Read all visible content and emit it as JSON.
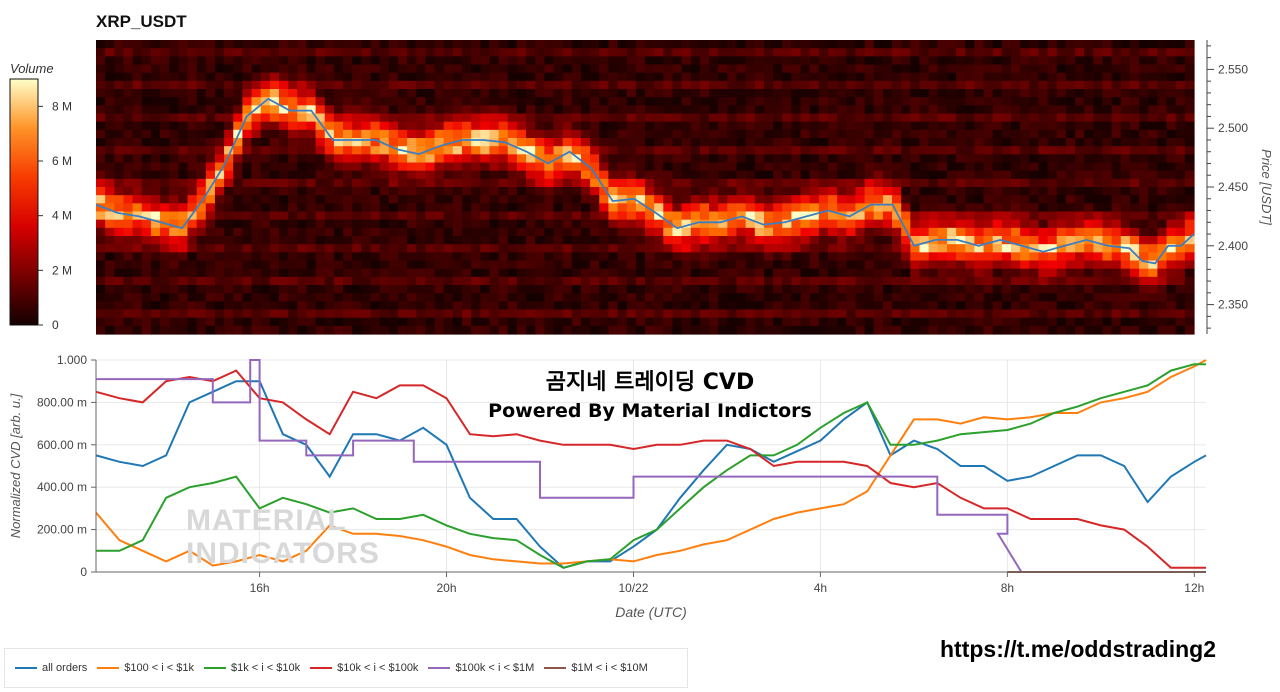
{
  "header": {
    "title": "XRP_USDT"
  },
  "overlay": {
    "line1": "곰지네 트레이딩 CVD",
    "line2": "Powered By Material Indictors",
    "watermark_line1": "MATERIAL",
    "watermark_line2": "INDICATORS",
    "link": "https://t.me/oddstrading2"
  },
  "colors": {
    "all_orders": "#1f77b4",
    "s100_1k": "#ff7f0e",
    "s1k_10k": "#2ca02c",
    "s10k_100k": "#d62728",
    "s100k_1m": "#9467bd",
    "s1m_10m": "#8c564b",
    "price_line": "#3b7fc0"
  },
  "chart_data": [
    {
      "type": "heatmap",
      "title": "XRP_USDT",
      "ylabel": "Price [USDT]",
      "yticks": [
        "2.350",
        "2.400",
        "2.450",
        "2.500",
        "2.550"
      ],
      "ylim": [
        2.325,
        2.575
      ],
      "colorbar": {
        "label": "Volume",
        "ticks": [
          "0",
          "2 M",
          "4 M",
          "6 M",
          "8 M"
        ],
        "max": 9
      },
      "price_series": {
        "x": [
          0,
          0.5,
          1,
          1.5,
          2,
          2.5,
          3,
          3.5,
          4,
          4.5,
          5,
          5.5,
          6,
          6.5,
          7,
          7.5,
          8,
          8.5,
          9,
          9.5,
          10,
          10.5,
          11,
          11.5,
          12,
          12.5,
          13,
          13.5,
          14,
          14.5,
          15,
          15.5,
          16,
          16.5,
          17,
          17.5,
          18,
          18.5,
          19,
          19.5,
          20,
          20.5,
          21,
          21.5,
          22,
          22.5,
          23,
          23.5,
          24,
          24.3,
          24.6,
          24.9,
          25.2,
          25.5
        ],
        "y": [
          2.435,
          2.428,
          2.425,
          2.42,
          2.415,
          2.44,
          2.47,
          2.51,
          2.525,
          2.515,
          2.515,
          2.49,
          2.49,
          2.49,
          2.482,
          2.478,
          2.485,
          2.49,
          2.49,
          2.488,
          2.48,
          2.47,
          2.48,
          2.466,
          2.438,
          2.44,
          2.428,
          2.415,
          2.42,
          2.42,
          2.425,
          2.418,
          2.42,
          2.425,
          2.43,
          2.425,
          2.435,
          2.435,
          2.4,
          2.405,
          2.405,
          2.4,
          2.405,
          2.4,
          2.395,
          2.4,
          2.405,
          2.4,
          2.398,
          2.387,
          2.385,
          2.4,
          2.4,
          2.41
        ],
        "color": "#3b7fc0"
      }
    },
    {
      "type": "line",
      "xlabel": "Date (UTC)",
      "ylabel": "Normalized CVD [arb. u.]",
      "xticks": [
        {
          "label": "16h",
          "value": 4
        },
        {
          "label": "20h",
          "value": 8
        },
        {
          "label": "10/22",
          "value": 12
        },
        {
          "label": "4h",
          "value": 16
        },
        {
          "label": "8h",
          "value": 20
        },
        {
          "label": "12h",
          "value": 24
        }
      ],
      "xlim": [
        0.5,
        24.25
      ],
      "yticks": [
        "0",
        "200.00 m",
        "400.00 m",
        "600.00 m",
        "800.00 m",
        "1.000"
      ],
      "ylim": [
        0,
        1
      ],
      "series": [
        {
          "name": "all orders",
          "color": "#1f77b4",
          "x": [
            0.5,
            1,
            1.5,
            2,
            2.5,
            3,
            3.5,
            4,
            4.5,
            5,
            5.5,
            6,
            6.5,
            7,
            7.5,
            8,
            8.5,
            9,
            9.5,
            10,
            10.5,
            11,
            11.5,
            12,
            12.5,
            13,
            13.5,
            14,
            14.5,
            15,
            15.5,
            16,
            16.5,
            17,
            17.5,
            18,
            18.5,
            19,
            19.5,
            20,
            20.5,
            21,
            21.5,
            22,
            22.5,
            23,
            23.5,
            24,
            24.25
          ],
          "y": [
            0.55,
            0.52,
            0.5,
            0.55,
            0.8,
            0.85,
            0.9,
            0.9,
            0.65,
            0.6,
            0.45,
            0.65,
            0.65,
            0.62,
            0.68,
            0.6,
            0.35,
            0.25,
            0.25,
            0.12,
            0.02,
            0.05,
            0.05,
            0.12,
            0.2,
            0.35,
            0.48,
            0.6,
            0.58,
            0.52,
            0.57,
            0.62,
            0.72,
            0.8,
            0.55,
            0.62,
            0.58,
            0.5,
            0.5,
            0.43,
            0.45,
            0.5,
            0.55,
            0.55,
            0.5,
            0.33,
            0.45,
            0.52,
            0.55
          ]
        },
        {
          "name": "$100 < i < $1k",
          "color": "#ff7f0e",
          "x": [
            0.5,
            1,
            1.5,
            2,
            2.5,
            3,
            3.5,
            4,
            4.5,
            5,
            5.5,
            6,
            6.5,
            7,
            7.5,
            8,
            8.5,
            9,
            9.5,
            10,
            10.5,
            11,
            11.5,
            12,
            12.5,
            13,
            13.5,
            14,
            14.5,
            15,
            15.5,
            16,
            16.5,
            17,
            17.5,
            18,
            18.5,
            19,
            19.5,
            20,
            20.5,
            21,
            21.5,
            22,
            22.5,
            23,
            23.5,
            24,
            24.25
          ],
          "y": [
            0.28,
            0.15,
            0.1,
            0.05,
            0.1,
            0.03,
            0.05,
            0.08,
            0.05,
            0.1,
            0.22,
            0.18,
            0.18,
            0.17,
            0.15,
            0.12,
            0.08,
            0.06,
            0.05,
            0.04,
            0.04,
            0.05,
            0.06,
            0.05,
            0.08,
            0.1,
            0.13,
            0.15,
            0.2,
            0.25,
            0.28,
            0.3,
            0.32,
            0.38,
            0.55,
            0.72,
            0.72,
            0.7,
            0.73,
            0.72,
            0.73,
            0.75,
            0.75,
            0.8,
            0.82,
            0.85,
            0.92,
            0.97,
            1.0
          ]
        },
        {
          "name": "$1k < i < $10k",
          "color": "#2ca02c",
          "x": [
            0.5,
            1,
            1.5,
            2,
            2.5,
            3,
            3.5,
            4,
            4.5,
            5,
            5.5,
            6,
            6.5,
            7,
            7.5,
            8,
            8.5,
            9,
            9.5,
            10,
            10.5,
            11,
            11.5,
            12,
            12.5,
            13,
            13.5,
            14,
            14.5,
            15,
            15.5,
            16,
            16.5,
            17,
            17.5,
            18,
            18.5,
            19,
            19.5,
            20,
            20.5,
            21,
            21.5,
            22,
            22.5,
            23,
            23.5,
            24,
            24.25
          ],
          "y": [
            0.1,
            0.1,
            0.15,
            0.35,
            0.4,
            0.42,
            0.45,
            0.3,
            0.35,
            0.32,
            0.28,
            0.3,
            0.25,
            0.25,
            0.27,
            0.22,
            0.18,
            0.16,
            0.15,
            0.08,
            0.02,
            0.05,
            0.06,
            0.15,
            0.2,
            0.3,
            0.4,
            0.48,
            0.55,
            0.55,
            0.6,
            0.68,
            0.75,
            0.8,
            0.6,
            0.6,
            0.62,
            0.65,
            0.66,
            0.67,
            0.7,
            0.75,
            0.78,
            0.82,
            0.85,
            0.88,
            0.95,
            0.98,
            0.98
          ]
        },
        {
          "name": "$10k < i < $100k",
          "color": "#d62728",
          "x": [
            0.5,
            1,
            1.5,
            2,
            2.5,
            3,
            3.5,
            4,
            4.5,
            5,
            5.5,
            6,
            6.5,
            7,
            7.5,
            8,
            8.5,
            9,
            9.5,
            10,
            10.5,
            11,
            11.5,
            12,
            12.5,
            13,
            13.5,
            14,
            14.5,
            15,
            15.5,
            16,
            16.5,
            17,
            17.5,
            18,
            18.5,
            19,
            19.5,
            20,
            20.5,
            21,
            21.5,
            22,
            22.5,
            23,
            23.5,
            24,
            24.25
          ],
          "y": [
            0.85,
            0.82,
            0.8,
            0.9,
            0.92,
            0.9,
            0.95,
            0.82,
            0.8,
            0.72,
            0.65,
            0.85,
            0.82,
            0.88,
            0.88,
            0.82,
            0.65,
            0.64,
            0.65,
            0.62,
            0.6,
            0.6,
            0.6,
            0.58,
            0.6,
            0.6,
            0.62,
            0.62,
            0.58,
            0.5,
            0.52,
            0.52,
            0.52,
            0.5,
            0.42,
            0.4,
            0.42,
            0.35,
            0.3,
            0.3,
            0.25,
            0.25,
            0.25,
            0.22,
            0.2,
            0.12,
            0.02,
            0.02,
            0.02
          ]
        },
        {
          "name": "$100k < i < $1M",
          "color": "#9467bd",
          "x": [
            0.5,
            3,
            3,
            3.8,
            3.8,
            4,
            4,
            5,
            5,
            6,
            6,
            7.3,
            7.3,
            9,
            9,
            10,
            10,
            12,
            12,
            18.5,
            18.5,
            20,
            20,
            19.8,
            20.3,
            24.25
          ],
          "y": [
            0.91,
            0.91,
            0.8,
            0.8,
            1.0,
            1.0,
            0.62,
            0.62,
            0.55,
            0.55,
            0.62,
            0.62,
            0.52,
            0.52,
            0.52,
            0.52,
            0.35,
            0.35,
            0.45,
            0.45,
            0.27,
            0.27,
            0.18,
            0.18,
            0,
            0
          ]
        },
        {
          "name": "$1M < i < $10M",
          "color": "#8c564b",
          "x": [
            20,
            24.25
          ],
          "y": [
            0,
            0
          ]
        }
      ]
    }
  ]
}
